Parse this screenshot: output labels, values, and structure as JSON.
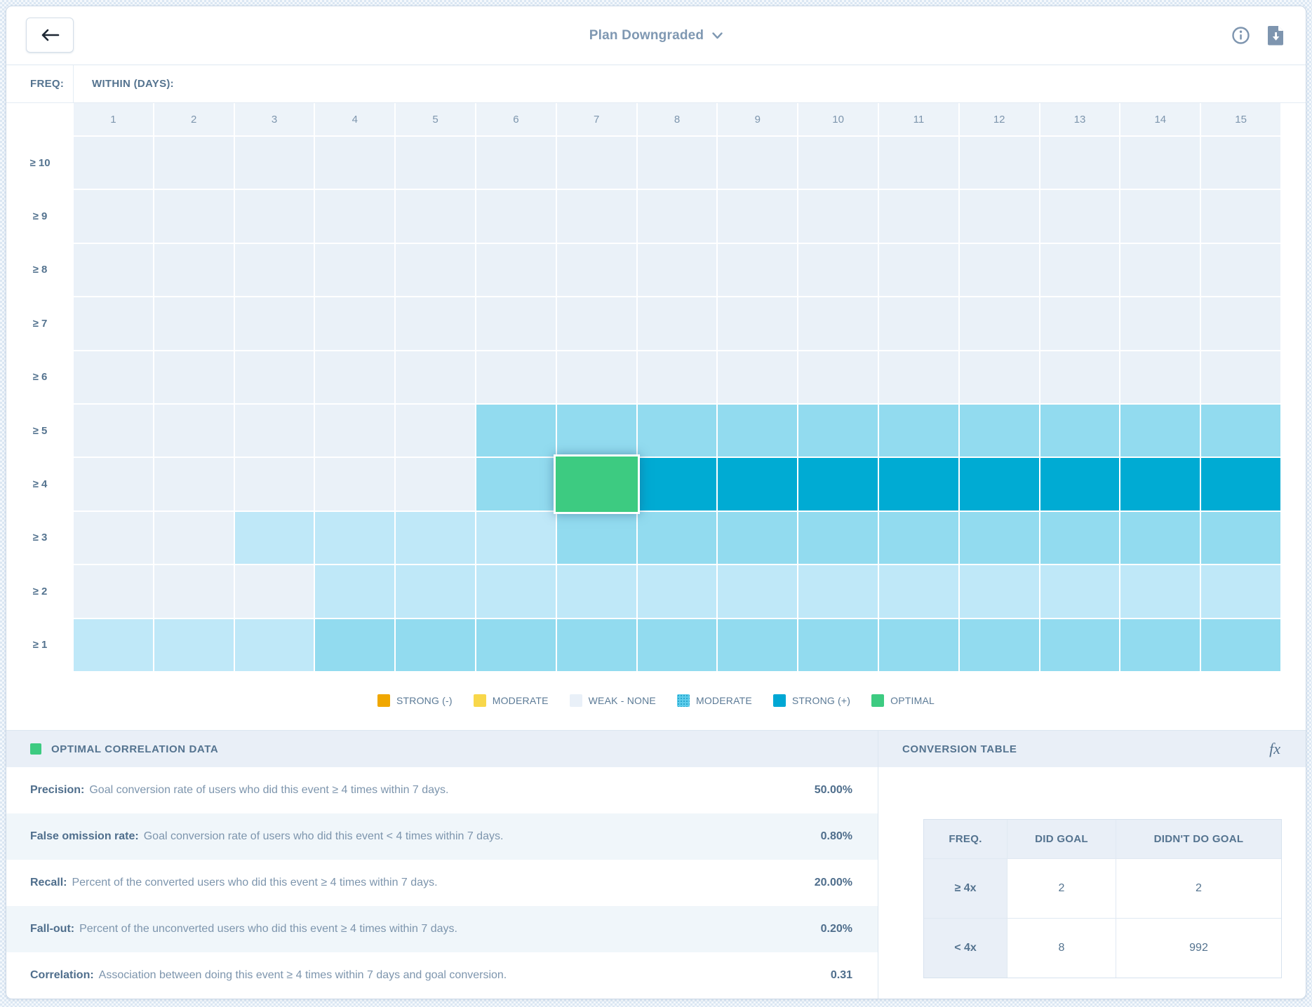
{
  "topbar": {
    "title": "Plan Downgraded",
    "back_icon": "left-arrow",
    "info_icon": "info-circle",
    "download_icon": "download-file"
  },
  "heatmap": {
    "freq_label": "FREQ:",
    "within_label": "WITHIN (DAYS):",
    "columns": [
      "1",
      "2",
      "3",
      "4",
      "5",
      "6",
      "7",
      "8",
      "9",
      "10",
      "11",
      "12",
      "13",
      "14",
      "15"
    ],
    "rows": [
      {
        "label": "≥ 10",
        "cells": [
          "none",
          "none",
          "none",
          "none",
          "none",
          "none",
          "none",
          "none",
          "none",
          "none",
          "none",
          "none",
          "none",
          "none",
          "none"
        ]
      },
      {
        "label": "≥ 9",
        "cells": [
          "none",
          "none",
          "none",
          "none",
          "none",
          "none",
          "none",
          "none",
          "none",
          "none",
          "none",
          "none",
          "none",
          "none",
          "none"
        ]
      },
      {
        "label": "≥ 8",
        "cells": [
          "none",
          "none",
          "none",
          "none",
          "none",
          "none",
          "none",
          "none",
          "none",
          "none",
          "none",
          "none",
          "none",
          "none",
          "none"
        ]
      },
      {
        "label": "≥ 7",
        "cells": [
          "none",
          "none",
          "none",
          "none",
          "none",
          "none",
          "none",
          "none",
          "none",
          "none",
          "none",
          "none",
          "none",
          "none",
          "none"
        ]
      },
      {
        "label": "≥ 6",
        "cells": [
          "none",
          "none",
          "none",
          "none",
          "none",
          "none",
          "none",
          "none",
          "none",
          "none",
          "none",
          "none",
          "none",
          "none",
          "none"
        ]
      },
      {
        "label": "≥ 5",
        "cells": [
          "none",
          "none",
          "none",
          "none",
          "none",
          "moderate",
          "moderate",
          "moderate",
          "moderate",
          "moderate",
          "moderate",
          "moderate",
          "moderate",
          "moderate",
          "moderate"
        ]
      },
      {
        "label": "≥ 4",
        "cells": [
          "none",
          "none",
          "none",
          "none",
          "none",
          "moderate",
          "optimal",
          "strong",
          "strong",
          "strong",
          "strong",
          "strong",
          "strong",
          "strong",
          "strong"
        ]
      },
      {
        "label": "≥ 3",
        "cells": [
          "none",
          "none",
          "weak",
          "weak",
          "weak",
          "weak",
          "moderate",
          "moderate",
          "moderate",
          "moderate",
          "moderate",
          "moderate",
          "moderate",
          "moderate",
          "moderate"
        ]
      },
      {
        "label": "≥ 2",
        "cells": [
          "none",
          "none",
          "none",
          "weak",
          "weak",
          "weak",
          "weak",
          "weak",
          "weak",
          "weak",
          "weak",
          "weak",
          "weak",
          "weak",
          "weak"
        ]
      },
      {
        "label": "≥ 1",
        "cells": [
          "weak",
          "weak",
          "weak",
          "moderate",
          "moderate",
          "moderate",
          "moderate",
          "moderate",
          "moderate",
          "moderate",
          "moderate",
          "moderate",
          "moderate",
          "moderate",
          "moderate"
        ]
      }
    ],
    "optimal_cell": {
      "row": "≥ 4",
      "column": "7"
    }
  },
  "cell_colors": {
    "none": "#EAF1F8",
    "weak": "#BFE8F8",
    "moderate": "#92DBEF",
    "strong": "#00ABD3",
    "optimal": "#3DCB81"
  },
  "legend": [
    {
      "label": "STRONG (-)",
      "color": "#F0A700",
      "pattern": "solid"
    },
    {
      "label": "MODERATE",
      "color": "#F8D74A",
      "pattern": "solid"
    },
    {
      "label": "WEAK - NONE",
      "color": "#E9F0F8",
      "pattern": "solid"
    },
    {
      "label": "MODERATE",
      "color": "#5ECDEB",
      "pattern": "dots"
    },
    {
      "label": "STRONG (+)",
      "color": "#00A7D4",
      "pattern": "solid"
    },
    {
      "label": "OPTIMAL",
      "color": "#3DCB81",
      "pattern": "solid"
    }
  ],
  "optimal_panel": {
    "title": "OPTIMAL CORRELATION DATA",
    "swatch_color": "#3DCB81",
    "metrics": [
      {
        "label": "Precision:",
        "description": "Goal conversion rate of users who did this event ≥ 4 times within 7 days.",
        "value": "50.00%"
      },
      {
        "label": "False omission rate:",
        "description": "Goal conversion rate of users who did this event < 4 times within 7 days.",
        "value": "0.80%"
      },
      {
        "label": "Recall:",
        "description": "Percent of the converted users who did this event ≥ 4 times within 7 days.",
        "value": "20.00%"
      },
      {
        "label": "Fall-out:",
        "description": "Percent of the unconverted users who did this event ≥ 4 times within 7 days.",
        "value": "0.20%"
      },
      {
        "label": "Correlation:",
        "description": "Association between doing this event ≥ 4 times within 7 days and goal conversion.",
        "value": "0.31"
      }
    ]
  },
  "conversion_panel": {
    "title": "CONVERSION TABLE",
    "fx_icon": "fx",
    "headers": [
      "FREQ.",
      "DID GOAL",
      "DIDN'T DO GOAL"
    ],
    "rows": [
      {
        "freq": "≥ 4x",
        "did_goal": "2",
        "didnt_do_goal": "2"
      },
      {
        "freq": "< 4x",
        "did_goal": "8",
        "didnt_do_goal": "992"
      }
    ]
  }
}
